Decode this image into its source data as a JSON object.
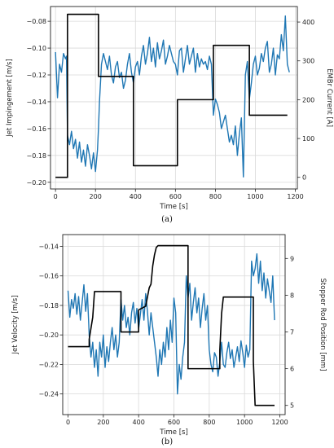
{
  "chart_data": [
    {
      "panel_label": "(a)",
      "type": "line",
      "title": "",
      "xlabel": "Time [s]",
      "ylabel_left": "Jet Impingement [m/s]",
      "ylabel_right": "EMBr Current [A]",
      "xlim": [
        -25,
        1210
      ],
      "ylim_left": [
        -0.205,
        -0.069
      ],
      "ylim_right": [
        -30,
        440
      ],
      "x_ticks": [
        "0",
        "200",
        "400",
        "600",
        "800",
        "1000",
        "1200"
      ],
      "x_tick_values": [
        0,
        200,
        400,
        600,
        800,
        1000,
        1200
      ],
      "y_ticks_left": [
        "−0.08",
        "−0.10",
        "−0.12",
        "−0.14",
        "−0.16",
        "−0.18",
        "−0.20"
      ],
      "y_tick_values_left": [
        -0.08,
        -0.1,
        -0.12,
        -0.14,
        -0.16,
        -0.18,
        -0.2
      ],
      "y_ticks_right": [
        "0",
        "100",
        "200",
        "300",
        "400"
      ],
      "y_tick_values_right": [
        0,
        100,
        200,
        300,
        400
      ],
      "grid": true,
      "series": [
        {
          "axis": "left",
          "color": "#1f77b4",
          "x": [
            0,
            10,
            20,
            30,
            40,
            50,
            55,
            60,
            70,
            80,
            90,
            100,
            110,
            120,
            130,
            140,
            150,
            160,
            170,
            180,
            190,
            200,
            210,
            215,
            220,
            230,
            240,
            250,
            260,
            270,
            280,
            290,
            300,
            310,
            320,
            330,
            340,
            350,
            360,
            370,
            380,
            390,
            400,
            410,
            420,
            430,
            440,
            450,
            460,
            470,
            480,
            490,
            500,
            510,
            520,
            530,
            540,
            550,
            560,
            570,
            580,
            590,
            600,
            610,
            620,
            630,
            640,
            650,
            660,
            670,
            680,
            690,
            700,
            710,
            720,
            730,
            740,
            750,
            760,
            770,
            780,
            790,
            800,
            810,
            820,
            830,
            840,
            850,
            860,
            870,
            880,
            890,
            900,
            910,
            920,
            930,
            940,
            950,
            960,
            970,
            980,
            990,
            1000,
            1010,
            1020,
            1030,
            1040,
            1050,
            1060,
            1070,
            1080,
            1090,
            1100,
            1110,
            1120,
            1130,
            1140,
            1150,
            1160,
            1170
          ],
          "y": [
            -0.103,
            -0.137,
            -0.112,
            -0.118,
            -0.104,
            -0.108,
            -0.106,
            -0.165,
            -0.172,
            -0.162,
            -0.175,
            -0.168,
            -0.182,
            -0.17,
            -0.185,
            -0.176,
            -0.188,
            -0.172,
            -0.18,
            -0.19,
            -0.178,
            -0.192,
            -0.176,
            -0.16,
            -0.14,
            -0.112,
            -0.104,
            -0.11,
            -0.116,
            -0.106,
            -0.12,
            -0.126,
            -0.114,
            -0.11,
            -0.122,
            -0.118,
            -0.13,
            -0.124,
            -0.112,
            -0.104,
            -0.118,
            -0.126,
            -0.114,
            -0.11,
            -0.12,
            -0.106,
            -0.098,
            -0.112,
            -0.104,
            -0.092,
            -0.11,
            -0.1,
            -0.114,
            -0.096,
            -0.108,
            -0.102,
            -0.094,
            -0.112,
            -0.106,
            -0.098,
            -0.104,
            -0.11,
            -0.112,
            -0.12,
            -0.102,
            -0.1,
            -0.118,
            -0.108,
            -0.098,
            -0.112,
            -0.106,
            -0.1,
            -0.118,
            -0.104,
            -0.114,
            -0.108,
            -0.112,
            -0.11,
            -0.116,
            -0.106,
            -0.112,
            -0.15,
            -0.138,
            -0.142,
            -0.148,
            -0.16,
            -0.155,
            -0.15,
            -0.16,
            -0.17,
            -0.165,
            -0.172,
            -0.158,
            -0.18,
            -0.164,
            -0.152,
            -0.196,
            -0.12,
            -0.11,
            -0.138,
            -0.126,
            -0.112,
            -0.106,
            -0.12,
            -0.115,
            -0.104,
            -0.11,
            -0.1,
            -0.095,
            -0.118,
            -0.112,
            -0.1,
            -0.12,
            -0.105,
            -0.108,
            -0.09,
            -0.102,
            -0.076,
            -0.112,
            -0.118
          ]
        },
        {
          "axis": "right",
          "color": "#000000",
          "step": true,
          "x": [
            0,
            60,
            60,
            215,
            215,
            390,
            390,
            610,
            610,
            790,
            790,
            970,
            970,
            1160
          ],
          "y": [
            0,
            0,
            420,
            420,
            260,
            260,
            30,
            30,
            200,
            200,
            340,
            340,
            160,
            160
          ]
        }
      ]
    },
    {
      "panel_label": "(b)",
      "type": "line",
      "title": "",
      "xlabel": "Time [s]",
      "ylabel_left": "Jet Velocity [m/s]",
      "ylabel_right": "Stopper Rod Position [mm]",
      "xlim": [
        -30,
        1230
      ],
      "ylim_left": [
        -0.254,
        -0.132
      ],
      "ylim_right": [
        4.75,
        9.65
      ],
      "x_ticks": [
        "0",
        "200",
        "400",
        "600",
        "800",
        "1000",
        "1200"
      ],
      "x_tick_values": [
        0,
        200,
        400,
        600,
        800,
        1000,
        1200
      ],
      "y_ticks_left": [
        "−0.14",
        "−0.16",
        "−0.18",
        "−0.20",
        "−0.22",
        "−0.24"
      ],
      "y_tick_values_left": [
        -0.14,
        -0.16,
        -0.18,
        -0.2,
        -0.22,
        -0.24
      ],
      "y_ticks_right": [
        "5",
        "6",
        "7",
        "8",
        "9"
      ],
      "y_tick_values_right": [
        5,
        6,
        7,
        8,
        9
      ],
      "grid": true,
      "series": [
        {
          "axis": "left",
          "color": "#1f77b4",
          "x": [
            0,
            10,
            20,
            30,
            40,
            50,
            60,
            70,
            80,
            90,
            100,
            110,
            120,
            130,
            140,
            150,
            160,
            170,
            180,
            190,
            200,
            210,
            220,
            230,
            240,
            250,
            260,
            270,
            280,
            290,
            300,
            310,
            320,
            330,
            340,
            350,
            360,
            370,
            380,
            390,
            400,
            410,
            420,
            430,
            440,
            450,
            460,
            470,
            480,
            490,
            500,
            510,
            520,
            530,
            540,
            550,
            560,
            570,
            580,
            590,
            600,
            610,
            620,
            630,
            640,
            650,
            660,
            670,
            680,
            690,
            700,
            710,
            720,
            730,
            740,
            750,
            760,
            770,
            780,
            790,
            800,
            810,
            820,
            830,
            840,
            850,
            860,
            870,
            880,
            890,
            900,
            910,
            920,
            930,
            940,
            950,
            960,
            970,
            980,
            990,
            1000,
            1010,
            1020,
            1030,
            1040,
            1050,
            1060,
            1070,
            1080,
            1090,
            1100,
            1110,
            1120,
            1130,
            1140,
            1150,
            1160,
            1170
          ],
          "y": [
            -0.17,
            -0.188,
            -0.176,
            -0.182,
            -0.172,
            -0.186,
            -0.174,
            -0.19,
            -0.178,
            -0.166,
            -0.184,
            -0.172,
            -0.2,
            -0.215,
            -0.205,
            -0.222,
            -0.21,
            -0.228,
            -0.205,
            -0.215,
            -0.2,
            -0.222,
            -0.208,
            -0.218,
            -0.205,
            -0.195,
            -0.21,
            -0.2,
            -0.215,
            -0.205,
            -0.176,
            -0.19,
            -0.18,
            -0.195,
            -0.188,
            -0.2,
            -0.185,
            -0.178,
            -0.192,
            -0.182,
            -0.196,
            -0.186,
            -0.176,
            -0.19,
            -0.172,
            -0.184,
            -0.2,
            -0.185,
            -0.195,
            -0.205,
            -0.215,
            -0.228,
            -0.21,
            -0.22,
            -0.205,
            -0.215,
            -0.195,
            -0.21,
            -0.19,
            -0.205,
            -0.175,
            -0.185,
            -0.24,
            -0.22,
            -0.23,
            -0.215,
            -0.205,
            -0.16,
            -0.175,
            -0.165,
            -0.19,
            -0.178,
            -0.168,
            -0.185,
            -0.175,
            -0.195,
            -0.182,
            -0.172,
            -0.19,
            -0.18,
            -0.21,
            -0.22,
            -0.225,
            -0.212,
            -0.215,
            -0.228,
            -0.218,
            -0.205,
            -0.22,
            -0.222,
            -0.212,
            -0.205,
            -0.216,
            -0.21,
            -0.222,
            -0.215,
            -0.208,
            -0.218,
            -0.204,
            -0.212,
            -0.222,
            -0.207,
            -0.215,
            -0.21,
            -0.15,
            -0.16,
            -0.155,
            -0.145,
            -0.165,
            -0.15,
            -0.17,
            -0.158,
            -0.175,
            -0.162,
            -0.17,
            -0.178,
            -0.16,
            -0.19
          ]
        },
        {
          "axis": "right",
          "color": "#000000",
          "step": true,
          "x": [
            0,
            120,
            120,
            130,
            140,
            150,
            300,
            300,
            400,
            400,
            440,
            460,
            470,
            480,
            490,
            500,
            510,
            520,
            680,
            680,
            860,
            860,
            870,
            880,
            1050,
            1050,
            1060,
            1170
          ],
          "y": [
            6.6,
            6.6,
            6.8,
            7.1,
            7.4,
            8.1,
            8.1,
            7.0,
            7.0,
            7.6,
            7.7,
            8.2,
            8.3,
            8.8,
            9.1,
            9.3,
            9.35,
            9.35,
            9.35,
            6.0,
            6.0,
            6.5,
            7.5,
            7.95,
            7.95,
            6.2,
            5.0,
            5.0
          ]
        }
      ]
    }
  ]
}
